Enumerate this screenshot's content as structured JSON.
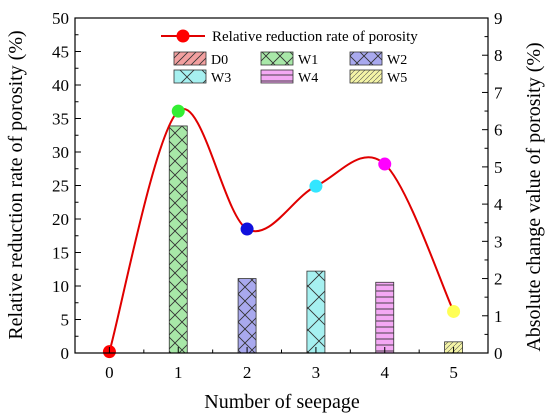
{
  "chart_data": {
    "type": "bar",
    "xlabel": "Number of seepage",
    "ylabel_left": "Relative reduction rate of porosity (%)",
    "ylabel_right": "Absolute change value of porosity (%)",
    "x_ticks": [
      "0",
      "1",
      "2",
      "3",
      "4",
      "5"
    ],
    "y_left_ticks": [
      "0",
      "5",
      "10",
      "15",
      "20",
      "25",
      "30",
      "35",
      "40",
      "45",
      "50"
    ],
    "y_right_ticks": [
      "0",
      "1",
      "2",
      "3",
      "4",
      "5",
      "6",
      "7",
      "8",
      "9"
    ],
    "y_left_range": [
      0,
      50
    ],
    "y_right_range": [
      0,
      9
    ],
    "x_range": [
      -0.5,
      5.5
    ],
    "line_series": {
      "name": "Relative reduction rate of porosity",
      "color": "#e00000",
      "x": [
        0,
        1,
        2,
        3,
        4,
        5
      ],
      "y": [
        0.2,
        36.1,
        18.5,
        24.9,
        28.2,
        6.2
      ],
      "marker_colors": [
        "#ff0000",
        "#33ee33",
        "#1010dd",
        "#33e6ff",
        "#ff00ff",
        "#ffff55"
      ]
    },
    "bar_series": {
      "axis": "right",
      "x": [
        0,
        1,
        2,
        3,
        4,
        5
      ],
      "values": [
        0,
        6.1,
        2.0,
        2.2,
        1.9,
        0.3
      ],
      "names": [
        "D0",
        "W1",
        "W2",
        "W3",
        "W4",
        "W5"
      ],
      "colors": [
        "#f2a0a0",
        "#a8e8a8",
        "#a9a9ee",
        "#a6f0f0",
        "#f4a8f4",
        "#f4f4a6"
      ],
      "patterns": [
        "diag-right",
        "crosshatch",
        "crosshatch",
        "diag-left",
        "horizontal",
        "diag-right-dense"
      ]
    },
    "legend_placement": "top-right"
  }
}
